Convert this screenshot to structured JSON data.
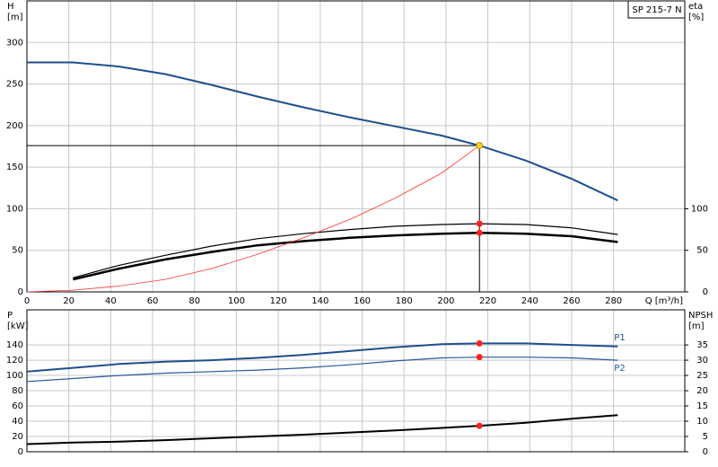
{
  "chart_data": [
    {
      "type": "line",
      "title": "SP 215-7 N",
      "ylabel": "H",
      "yunit": "[m]",
      "y2label": "eta",
      "y2unit": "[%]",
      "xlabel": "Q [m³/h]",
      "x": [
        0,
        22,
        44,
        66,
        88,
        110,
        132,
        154,
        176,
        198,
        216,
        238,
        260,
        282
      ],
      "xlim": [
        0,
        314
      ],
      "xticks": [
        0,
        20,
        40,
        60,
        80,
        100,
        120,
        140,
        160,
        180,
        200,
        220,
        240,
        260,
        280
      ],
      "ylim": [
        0,
        350
      ],
      "yticks": [
        0,
        50,
        100,
        150,
        200,
        250,
        300
      ],
      "y2lim": [
        0,
        350
      ],
      "y2ticks": [
        0,
        50,
        100
      ],
      "grid": true,
      "series": [
        {
          "color": "#1d4f8f",
          "width": 2,
          "values": [
            276,
            276,
            271,
            262,
            249,
            235,
            222,
            210,
            199,
            188,
            176,
            158,
            136,
            110
          ]
        },
        {
          "color": "#000000",
          "width": 1.2,
          "axis": "y2",
          "values": [
            null,
            17,
            32,
            44,
            55,
            64,
            70,
            75,
            79,
            81,
            82,
            81,
            77,
            69
          ]
        },
        {
          "color": "#000000",
          "width": 2.5,
          "axis": "y2",
          "values": [
            null,
            15,
            28,
            39,
            48,
            56,
            61,
            65,
            68,
            70,
            71,
            70,
            67,
            60
          ]
        },
        {
          "color": "#ff3030",
          "width": 0.8,
          "values": [
            0,
            2,
            7,
            15,
            28,
            45,
            65,
            87,
            113,
            143,
            176,
            null,
            null,
            null
          ]
        }
      ],
      "duty_point": {
        "x": 216,
        "y": 176,
        "color": "#ffd21f"
      },
      "points": [
        {
          "x": 216,
          "y": 82,
          "axis": "y2",
          "color": "#ff2020"
        },
        {
          "x": 216,
          "y": 71,
          "axis": "y2",
          "color": "#ff2020"
        }
      ]
    },
    {
      "type": "line",
      "ylabel": "P",
      "yunit": "[kW]",
      "y2label": "NPSH",
      "y2unit": "[m]",
      "x": [
        0,
        22,
        44,
        66,
        88,
        110,
        132,
        154,
        176,
        198,
        216,
        238,
        260,
        282
      ],
      "xlim": [
        0,
        314
      ],
      "xticks": [
        0,
        20,
        40,
        60,
        80,
        100,
        120,
        140,
        160,
        180,
        200,
        220,
        240,
        260,
        280
      ],
      "ylim": [
        0,
        186
      ],
      "yticks": [
        0,
        20,
        40,
        60,
        80,
        100,
        120,
        140
      ],
      "y2lim": [
        0,
        46.5
      ],
      "y2ticks": [
        0,
        5,
        10,
        15,
        20,
        25,
        30,
        35
      ],
      "grid": true,
      "series": [
        {
          "name": "P1",
          "color": "#1d4f8f",
          "width": 2,
          "values": [
            105,
            110,
            115,
            118,
            120,
            123,
            127,
            132,
            137,
            141,
            142,
            142,
            140,
            138
          ]
        },
        {
          "name": "P2",
          "color": "#2a5a9a",
          "width": 1.2,
          "values": [
            92,
            96,
            100,
            103,
            105,
            107,
            110,
            114,
            119,
            123,
            124,
            124,
            123,
            120
          ]
        },
        {
          "color": "#000000",
          "width": 2,
          "axis": "y2",
          "values": [
            2.5,
            3,
            3.3,
            3.8,
            4.4,
            5,
            5.6,
            6.3,
            7,
            7.8,
            8.5,
            9.5,
            10.8,
            12
          ]
        }
      ],
      "points": [
        {
          "x": 216,
          "y": 142,
          "color": "#ff2020"
        },
        {
          "x": 216,
          "y": 124,
          "color": "#ff2020"
        },
        {
          "x": 216,
          "y": 8.5,
          "axis": "y2",
          "color": "#ff2020"
        }
      ]
    }
  ]
}
